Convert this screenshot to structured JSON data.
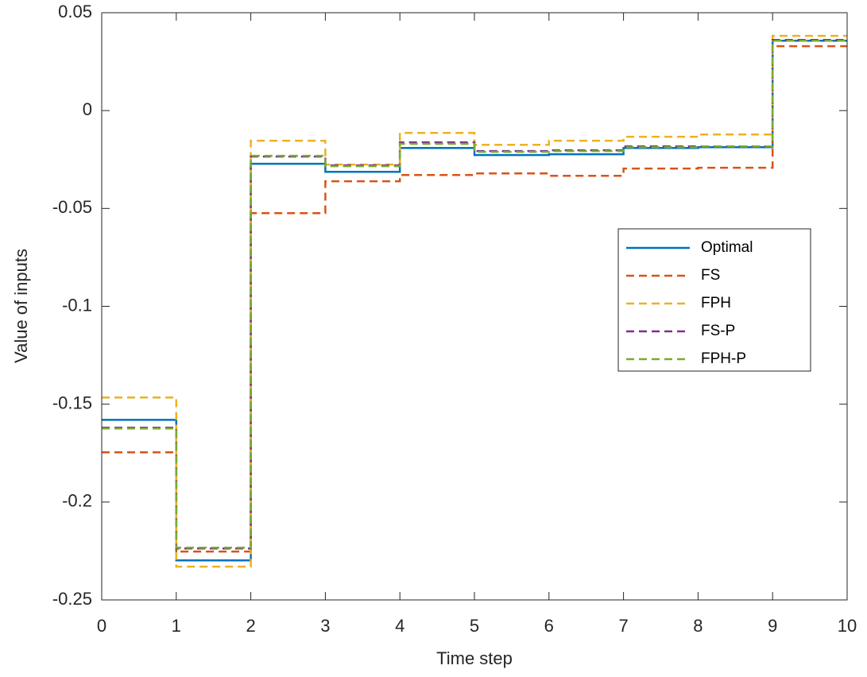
{
  "chart_data": {
    "type": "line",
    "step": true,
    "x_label": "Time step",
    "y_label": "Value of inputs",
    "x": [
      0,
      1,
      2,
      3,
      4,
      5,
      6,
      7,
      8,
      9,
      10
    ],
    "series": [
      {
        "name": "Optimal",
        "color": "#0072bd",
        "dashed": false,
        "values": [
          -0.158,
          -0.2298,
          -0.0272,
          -0.0313,
          -0.0191,
          -0.0227,
          -0.0223,
          -0.0191,
          -0.0187,
          0.0357,
          0.0357
        ]
      },
      {
        "name": "FS",
        "color": "#d95319",
        "dashed": true,
        "values": [
          -0.1746,
          -0.2253,
          -0.0524,
          -0.0361,
          -0.0329,
          -0.0321,
          -0.0333,
          -0.0296,
          -0.0292,
          0.0329,
          0.0329
        ]
      },
      {
        "name": "FPH",
        "color": "#edb120",
        "dashed": true,
        "values": [
          -0.1466,
          -0.233,
          -0.0154,
          -0.0276,
          -0.0114,
          -0.0175,
          -0.0154,
          -0.0134,
          -0.0122,
          0.0382,
          0.0382
        ]
      },
      {
        "name": "FS-P",
        "color": "#7e2f8e",
        "dashed": true,
        "values": [
          -0.162,
          -0.2237,
          -0.0235,
          -0.028,
          -0.0162,
          -0.0207,
          -0.0203,
          -0.0183,
          -0.0183,
          0.0361,
          0.0361
        ]
      },
      {
        "name": "FPH-P",
        "color": "#77ac30",
        "dashed": true,
        "values": [
          -0.1624,
          -0.2233,
          -0.0231,
          -0.0284,
          -0.017,
          -0.0211,
          -0.0207,
          -0.0187,
          -0.0183,
          0.0357,
          0.0357
        ]
      }
    ],
    "xlim": [
      0,
      10
    ],
    "ylim": [
      -0.25,
      0.05
    ],
    "xticks": [
      0,
      1,
      2,
      3,
      4,
      5,
      6,
      7,
      8,
      9,
      10
    ],
    "yticks": [
      -0.25,
      -0.2,
      -0.15,
      -0.1,
      -0.05,
      0,
      0.05
    ],
    "grid": false,
    "legend": "east"
  }
}
